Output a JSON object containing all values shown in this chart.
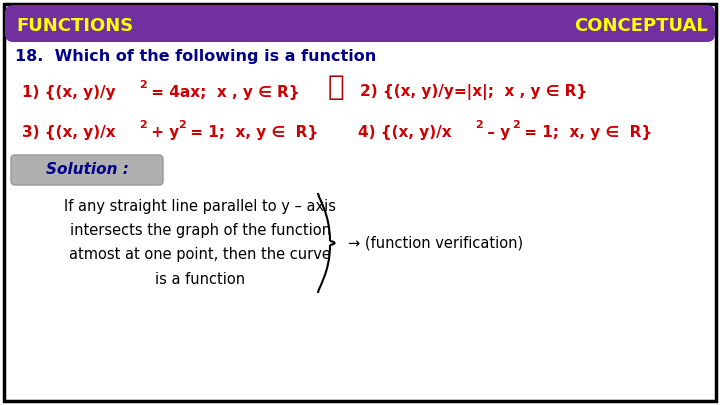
{
  "bg_color": "#ffffff",
  "border_color": "#000000",
  "header_bg": "#7030a0",
  "header_text_left": "FUNCTIONS",
  "header_text_right": "CONCEPTUAL",
  "header_text_color": "#ffff00",
  "question_text": "18.  Which of the following is a function",
  "question_color": "#00008b",
  "options_color": "#cc0000",
  "solution_bg": "#b0b0b0",
  "solution_text": "Solution :",
  "solution_text_color": "#00008b",
  "body_text_line1": "If any straight line parallel to y – axis",
  "body_text_line2": "intersects the graph of the function",
  "body_text_line3": "atmost at one point, then the curve",
  "body_text_line4": "is a function",
  "body_text_color": "#000000",
  "arrow_text": "→ (function verification)",
  "check_color": "#aa0000",
  "figsize": [
    7.2,
    4.05
  ],
  "dpi": 100
}
